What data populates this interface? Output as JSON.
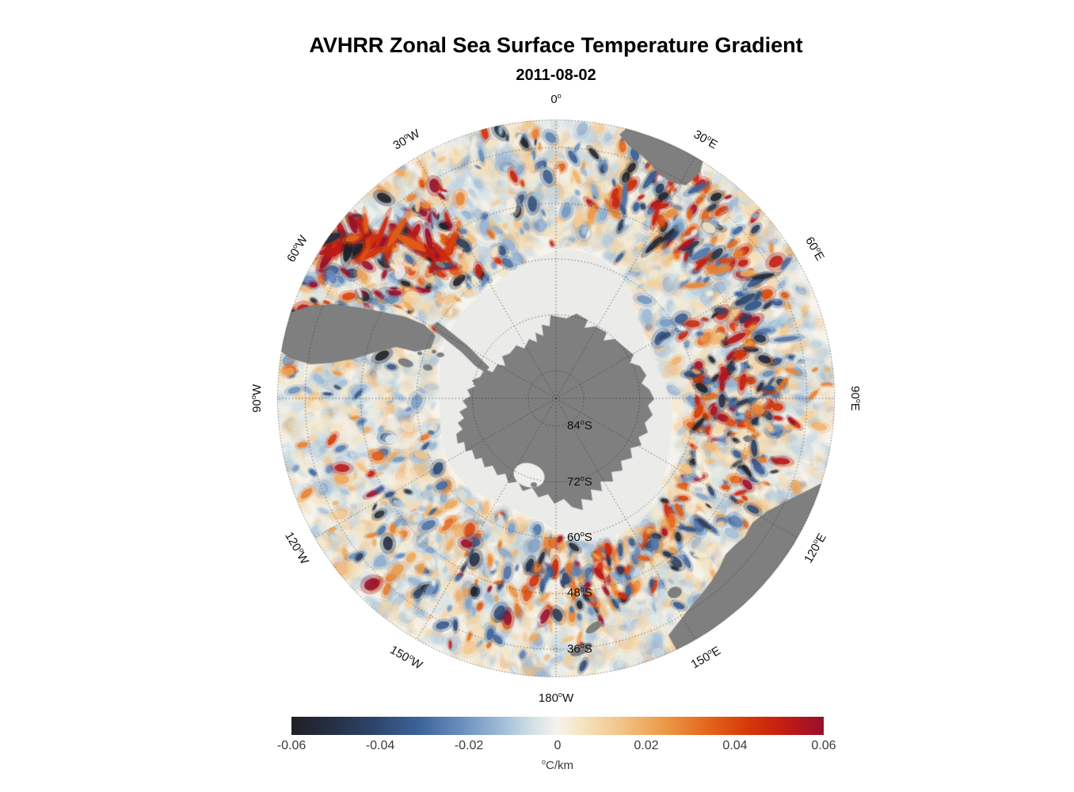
{
  "header": {
    "title": "AVHRR Zonal Sea Surface Temperature Gradient",
    "subtitle": "2011-08-02"
  },
  "chart_data": {
    "type": "heatmap",
    "title": "AVHRR Zonal Sea Surface Temperature Gradient",
    "subtitle": "2011-08-02",
    "projection": "south polar stereographic",
    "variable": "zonal sea surface temperature gradient",
    "units_sup": "o",
    "units": "C/km",
    "units_display": "°C/km",
    "value_range": [
      -0.06,
      0.06
    ],
    "lat_ring_degrees": [
      36,
      48,
      60,
      72,
      84
    ],
    "lon_spoke_interval_degrees": 30,
    "lat_rings": [
      {
        "deg": "84",
        "hemi": "S"
      },
      {
        "deg": "72",
        "hemi": "S"
      },
      {
        "deg": "60",
        "hemi": "S"
      },
      {
        "deg": "48",
        "hemi": "S"
      },
      {
        "deg": "36",
        "hemi": "S"
      }
    ],
    "lon_spokes": [
      {
        "deg": "0",
        "hemi": "",
        "angle": 0
      },
      {
        "deg": "30",
        "hemi": "E",
        "angle": 30
      },
      {
        "deg": "60",
        "hemi": "E",
        "angle": 60
      },
      {
        "deg": "90",
        "hemi": "E",
        "angle": 90
      },
      {
        "deg": "120",
        "hemi": "E",
        "angle": 120
      },
      {
        "deg": "150",
        "hemi": "E",
        "angle": 150
      },
      {
        "deg": "180",
        "hemi": "W",
        "angle": 180
      },
      {
        "deg": "150",
        "hemi": "W",
        "angle": -150
      },
      {
        "deg": "120",
        "hemi": "W",
        "angle": -120
      },
      {
        "deg": "90",
        "hemi": "W",
        "angle": -90
      },
      {
        "deg": "60",
        "hemi": "W",
        "angle": -60
      },
      {
        "deg": "30",
        "hemi": "W",
        "angle": -30
      }
    ],
    "colorbar": {
      "min": -0.06,
      "max": 0.06,
      "ticks": [
        "-0.06",
        "-0.04",
        "-0.02",
        "0",
        "0.02",
        "0.04",
        "0.06"
      ],
      "stops": [
        {
          "t": 0.0,
          "c": "#1f2026"
        },
        {
          "t": 0.07,
          "c": "#262e41"
        },
        {
          "t": 0.15,
          "c": "#2d4368"
        },
        {
          "t": 0.24,
          "c": "#3c639b"
        },
        {
          "t": 0.32,
          "c": "#6b8fbe"
        },
        {
          "t": 0.4,
          "c": "#a3c0da"
        },
        {
          "t": 0.46,
          "c": "#d8e4e6"
        },
        {
          "t": 0.5,
          "c": "#f6f3ec"
        },
        {
          "t": 0.54,
          "c": "#f6e6c6"
        },
        {
          "t": 0.62,
          "c": "#f2c387"
        },
        {
          "t": 0.7,
          "c": "#ec9a48"
        },
        {
          "t": 0.78,
          "c": "#e4671c"
        },
        {
          "t": 0.86,
          "c": "#d63708"
        },
        {
          "t": 0.93,
          "c": "#c21a14"
        },
        {
          "t": 1.0,
          "c": "#97102c"
        }
      ]
    },
    "colors": {
      "land": "#7f7f7f",
      "ice_shelf": "#ebebe9",
      "ocean_background": "#f7f4ee",
      "graticule": "#2b2b2b"
    }
  }
}
